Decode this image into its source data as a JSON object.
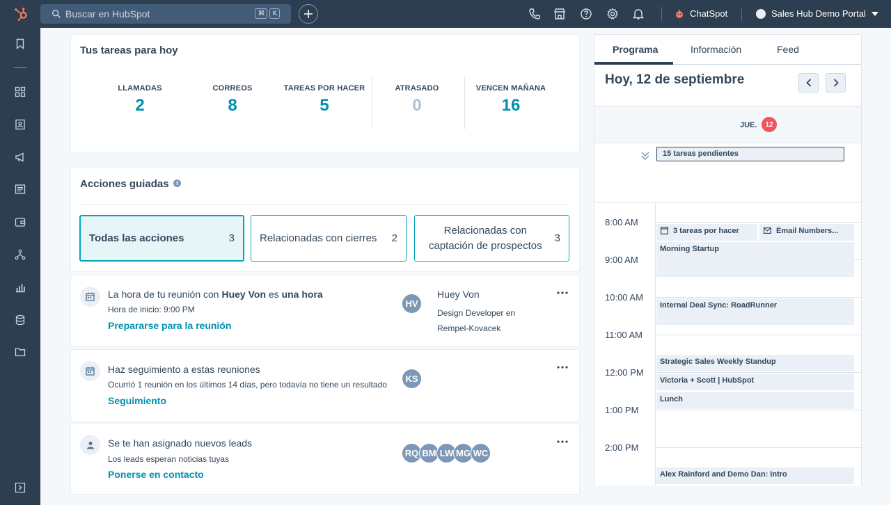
{
  "topbar": {
    "search_placeholder": "Buscar en HubSpot",
    "shortcut_keys": [
      "⌘",
      "K"
    ],
    "chatspot_label": "ChatSpot",
    "portal_label": "Sales Hub Demo Portal"
  },
  "tasks_today": {
    "title": "Tus tareas para hoy",
    "stats": [
      {
        "label": "LLAMADAS",
        "value": "2"
      },
      {
        "label": "CORREOS",
        "value": "8"
      },
      {
        "label": "TAREAS POR HACER",
        "value": "5"
      },
      {
        "label": "ATRASADO",
        "value": "0"
      },
      {
        "label": "VENCEN MAÑANA",
        "value": "16"
      }
    ]
  },
  "guided_actions": {
    "title": "Acciones guiadas",
    "info_glyph": "i",
    "filters": [
      {
        "label": "Todas las acciones",
        "count": "3"
      },
      {
        "label": "Relacionadas con cierres",
        "count": "2"
      },
      {
        "label_line1": "Relacionadas con",
        "label_line2": "captación de prospectos",
        "count": "3"
      }
    ],
    "items": [
      {
        "title_pre": "La hora de tu reunión con ",
        "title_bold1": "Huey Von",
        "title_mid": " es ",
        "title_bold2": "una hora",
        "subtitle": "Hora de inicio: 9:00 PM",
        "link": "Prepararse para la reunión",
        "avatars": [
          "HV"
        ],
        "contact_name": "Huey Von",
        "contact_role": "Design Developer en Rempel-Kovacek"
      },
      {
        "title": "Haz seguimiento a estas reuniones",
        "subtitle": "Ocurrió 1 reunión en los últimos 14 días, pero todavía no tiene un resultado",
        "link": "Seguimiento",
        "avatars": [
          "KS"
        ]
      },
      {
        "title": "Se te han asignado nuevos leads",
        "subtitle": "Los leads esperan noticias tuyas",
        "link": "Ponerse en contacto",
        "avatars": [
          "RQ",
          "BM",
          "LW",
          "MG",
          "WC"
        ]
      }
    ]
  },
  "schedule": {
    "tabs": [
      "Programa",
      "Información",
      "Feed"
    ],
    "date_title": "Hoy, 12 de septiembre",
    "day_label": "JUE.",
    "day_number": "12",
    "pending_tasks": "15 tareas pendientes",
    "hours": [
      "8:00 AM",
      "9:00 AM",
      "10:00 AM",
      "11:00 AM",
      "12:00 PM",
      "1:00 PM",
      "2:00 PM"
    ],
    "events": {
      "tasks": "3 tareas por hacer",
      "email": "Email Numbers...",
      "morning": "Morning Startup",
      "internal": "Internal Deal Sync: RoadRunner",
      "strategic": "Strategic Sales Weekly Standup",
      "victoria": "Victoria + Scott | HubSpot",
      "lunch": "Lunch",
      "alex": "Alex Rainford and Demo Dan: Intro"
    }
  },
  "colors": {
    "nav_bg": "#2d3e50",
    "accent_teal": "#0091ae",
    "brand_orange": "#ff7a59",
    "badge_red": "#f2545b"
  }
}
